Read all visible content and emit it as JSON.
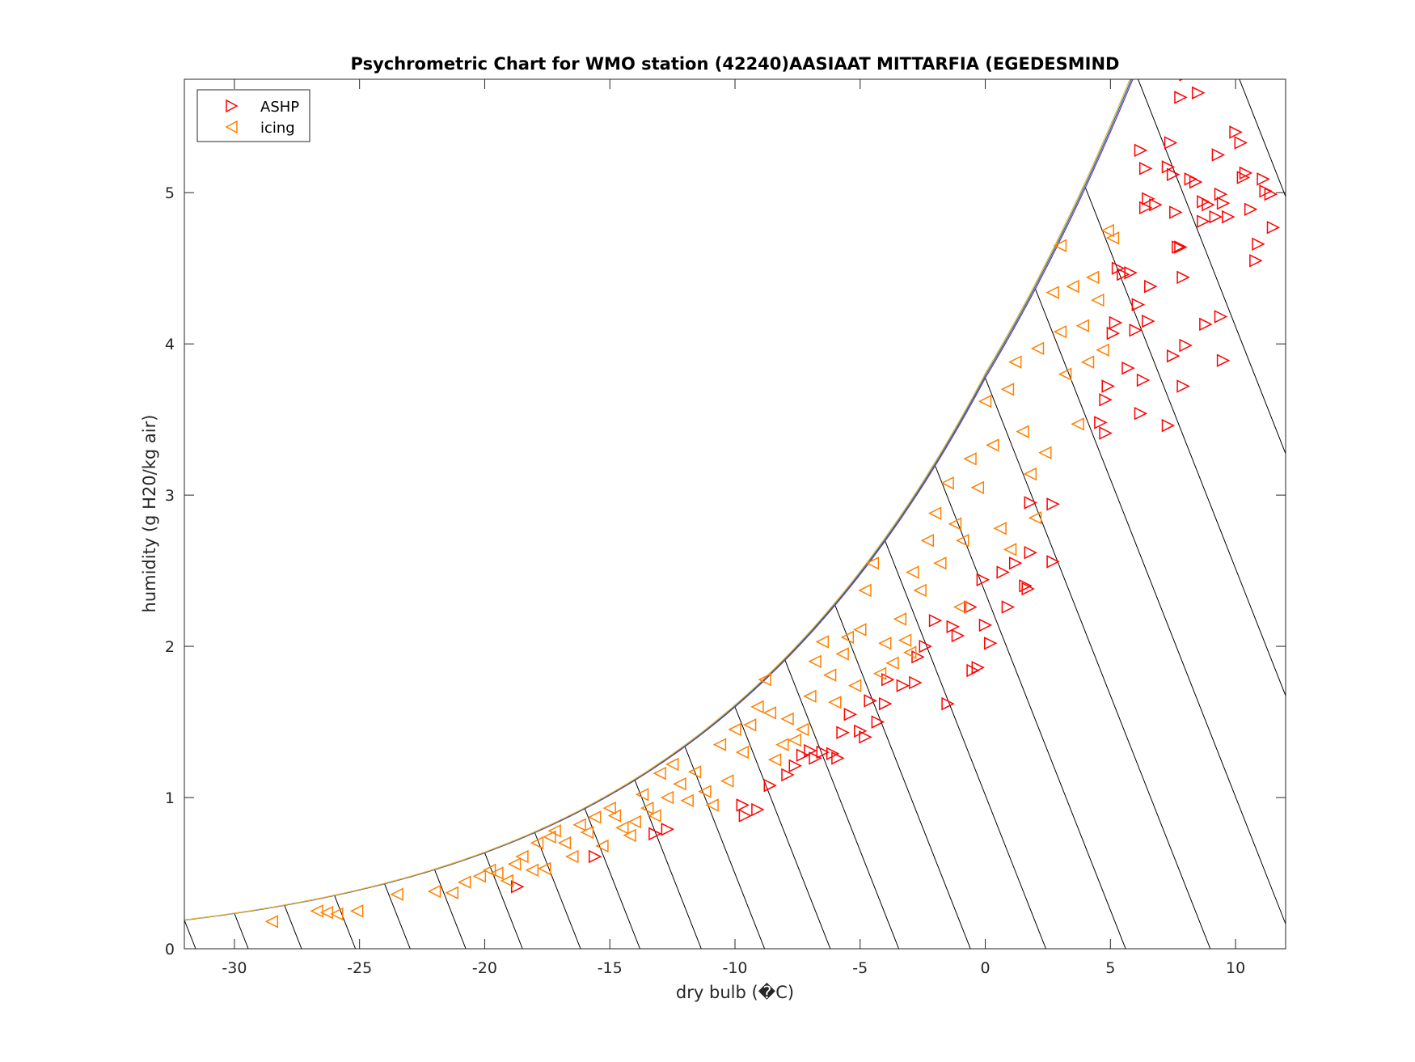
{
  "chart_data": {
    "type": "scatter",
    "title": "Psychrometric Chart for WMO station (42240)AASIAAT MITTARFIA (EGEDESMIND",
    "xlabel": "dry bulb (�C)",
    "ylabel": "humidity (g H20/kg air)",
    "xlim": [
      -32,
      12
    ],
    "ylim": [
      0,
      5.75
    ],
    "xticks": [
      -30,
      -25,
      -20,
      -15,
      -10,
      -5,
      0,
      5,
      10
    ],
    "yticks": [
      0,
      1,
      2,
      3,
      4,
      5
    ],
    "grid": false,
    "legend_position": "top-left",
    "background_lines": "saturation curve with diagonal constant wet-bulb lines",
    "colors": {
      "ASHP": "#ff0000",
      "icing": "#ff8000",
      "lines": "#000000",
      "saturation": "#7e2f8e"
    },
    "series": [
      {
        "name": "ASHP",
        "marker": "triangle-right",
        "points": [
          [
            -18.7,
            0.41
          ],
          [
            -15.6,
            0.61
          ],
          [
            -12.7,
            0.79
          ],
          [
            -13.2,
            0.76
          ],
          [
            -9.7,
            0.95
          ],
          [
            -9.6,
            0.88
          ],
          [
            -9.1,
            0.92
          ],
          [
            -8.6,
            1.08
          ],
          [
            -7.9,
            1.15
          ],
          [
            -7.6,
            1.21
          ],
          [
            -7.3,
            1.28
          ],
          [
            -7.0,
            1.31
          ],
          [
            -6.8,
            1.26
          ],
          [
            -6.5,
            1.3
          ],
          [
            -6.1,
            1.29
          ],
          [
            -5.9,
            1.26
          ],
          [
            -5.7,
            1.43
          ],
          [
            -5.4,
            1.55
          ],
          [
            -5.0,
            1.44
          ],
          [
            -4.8,
            1.4
          ],
          [
            -4.6,
            1.64
          ],
          [
            -4.3,
            1.5
          ],
          [
            -4.0,
            1.62
          ],
          [
            -3.9,
            1.78
          ],
          [
            -3.3,
            1.74
          ],
          [
            -2.8,
            1.76
          ],
          [
            -2.7,
            1.93
          ],
          [
            -2.4,
            2.0
          ],
          [
            -2.0,
            2.17
          ],
          [
            -1.5,
            1.62
          ],
          [
            -1.3,
            2.13
          ],
          [
            -1.1,
            2.07
          ],
          [
            -0.6,
            2.26
          ],
          [
            -0.5,
            1.84
          ],
          [
            -0.3,
            1.86
          ],
          [
            0.0,
            2.14
          ],
          [
            0.2,
            2.02
          ],
          [
            -0.1,
            2.44
          ],
          [
            0.7,
            2.49
          ],
          [
            0.9,
            2.26
          ],
          [
            1.2,
            2.55
          ],
          [
            1.6,
            2.4
          ],
          [
            1.7,
            2.38
          ],
          [
            1.8,
            2.62
          ],
          [
            1.8,
            2.95
          ],
          [
            2.7,
            2.94
          ],
          [
            2.7,
            2.56
          ],
          [
            4.6,
            3.48
          ],
          [
            4.8,
            3.41
          ],
          [
            4.8,
            3.63
          ],
          [
            4.9,
            3.72
          ],
          [
            5.1,
            4.07
          ],
          [
            5.2,
            4.14
          ],
          [
            5.3,
            4.5
          ],
          [
            5.5,
            4.46
          ],
          [
            5.7,
            3.84
          ],
          [
            5.8,
            4.47
          ],
          [
            6.0,
            4.09
          ],
          [
            6.1,
            4.26
          ],
          [
            6.2,
            3.54
          ],
          [
            6.3,
            3.76
          ],
          [
            6.4,
            4.9
          ],
          [
            6.5,
            4.15
          ],
          [
            6.6,
            4.38
          ],
          [
            6.2,
            5.28
          ],
          [
            6.4,
            5.16
          ],
          [
            6.5,
            4.96
          ],
          [
            6.8,
            4.92
          ],
          [
            7.3,
            5.17
          ],
          [
            7.4,
            5.33
          ],
          [
            7.5,
            5.12
          ],
          [
            7.6,
            4.87
          ],
          [
            7.7,
            4.64
          ],
          [
            7.8,
            4.64
          ],
          [
            7.9,
            4.44
          ],
          [
            7.8,
            5.63
          ],
          [
            8.0,
            5.78
          ],
          [
            8.2,
            5.09
          ],
          [
            8.4,
            5.07
          ],
          [
            8.7,
            4.94
          ],
          [
            8.5,
            5.66
          ],
          [
            8.7,
            4.81
          ],
          [
            8.9,
            4.92
          ],
          [
            9.2,
            4.84
          ],
          [
            9.3,
            5.25
          ],
          [
            9.4,
            4.99
          ],
          [
            9.5,
            4.93
          ],
          [
            9.7,
            4.84
          ],
          [
            10.0,
            5.4
          ],
          [
            10.2,
            5.33
          ],
          [
            10.3,
            5.1
          ],
          [
            10.4,
            5.13
          ],
          [
            10.6,
            4.89
          ],
          [
            10.8,
            4.55
          ],
          [
            10.9,
            4.66
          ],
          [
            11.1,
            5.09
          ],
          [
            11.2,
            5.01
          ],
          [
            11.4,
            4.99
          ],
          [
            11.5,
            4.77
          ],
          [
            8.8,
            4.13
          ],
          [
            9.4,
            4.18
          ],
          [
            9.5,
            3.89
          ],
          [
            7.9,
            3.72
          ],
          [
            7.3,
            3.46
          ],
          [
            7.5,
            3.92
          ],
          [
            8.0,
            3.99
          ]
        ]
      },
      {
        "name": "icing",
        "marker": "triangle-left",
        "points": [
          [
            -28.5,
            0.18
          ],
          [
            -26.7,
            0.25
          ],
          [
            -26.3,
            0.24
          ],
          [
            -25.9,
            0.23
          ],
          [
            -25.1,
            0.25
          ],
          [
            -23.5,
            0.36
          ],
          [
            -22.0,
            0.38
          ],
          [
            -21.3,
            0.37
          ],
          [
            -20.8,
            0.44
          ],
          [
            -20.2,
            0.48
          ],
          [
            -19.8,
            0.52
          ],
          [
            -19.5,
            0.5
          ],
          [
            -19.1,
            0.45
          ],
          [
            -18.8,
            0.56
          ],
          [
            -18.5,
            0.61
          ],
          [
            -18.1,
            0.52
          ],
          [
            -17.9,
            0.7
          ],
          [
            -17.6,
            0.53
          ],
          [
            -17.4,
            0.74
          ],
          [
            -17.2,
            0.78
          ],
          [
            -16.8,
            0.7
          ],
          [
            -16.5,
            0.61
          ],
          [
            -16.2,
            0.82
          ],
          [
            -15.9,
            0.77
          ],
          [
            -15.6,
            0.87
          ],
          [
            -15.3,
            0.68
          ],
          [
            -15.0,
            0.93
          ],
          [
            -14.8,
            0.88
          ],
          [
            -14.5,
            0.8
          ],
          [
            -14.2,
            0.75
          ],
          [
            -14.0,
            0.84
          ],
          [
            -13.7,
            1.02
          ],
          [
            -13.5,
            0.93
          ],
          [
            -13.2,
            0.88
          ],
          [
            -13.0,
            1.16
          ],
          [
            -12.7,
            1.0
          ],
          [
            -12.5,
            1.22
          ],
          [
            -12.2,
            1.09
          ],
          [
            -11.9,
            0.98
          ],
          [
            -11.6,
            1.17
          ],
          [
            -11.2,
            1.04
          ],
          [
            -10.9,
            0.95
          ],
          [
            -10.6,
            1.35
          ],
          [
            -10.3,
            1.11
          ],
          [
            -10.0,
            1.45
          ],
          [
            -9.7,
            1.3
          ],
          [
            -9.4,
            1.48
          ],
          [
            -9.1,
            1.6
          ],
          [
            -8.8,
            1.78
          ],
          [
            -8.6,
            1.56
          ],
          [
            -8.4,
            1.25
          ],
          [
            -8.1,
            1.35
          ],
          [
            -7.9,
            1.52
          ],
          [
            -7.6,
            1.38
          ],
          [
            -7.3,
            1.45
          ],
          [
            -7.0,
            1.67
          ],
          [
            -6.8,
            1.9
          ],
          [
            -6.5,
            2.03
          ],
          [
            -6.2,
            1.81
          ],
          [
            -6.0,
            1.63
          ],
          [
            -5.7,
            1.95
          ],
          [
            -5.5,
            2.06
          ],
          [
            -5.2,
            1.74
          ],
          [
            -5.0,
            2.11
          ],
          [
            -4.8,
            2.37
          ],
          [
            -4.5,
            2.55
          ],
          [
            -4.2,
            1.82
          ],
          [
            -4.0,
            2.02
          ],
          [
            -3.7,
            1.89
          ],
          [
            -3.4,
            2.18
          ],
          [
            -3.2,
            2.04
          ],
          [
            -2.9,
            2.49
          ],
          [
            -2.6,
            2.37
          ],
          [
            -2.3,
            2.7
          ],
          [
            -2.0,
            2.88
          ],
          [
            -1.8,
            2.55
          ],
          [
            -1.5,
            3.08
          ],
          [
            -1.2,
            2.81
          ],
          [
            -0.9,
            2.7
          ],
          [
            -0.6,
            3.24
          ],
          [
            -0.3,
            3.05
          ],
          [
            0.0,
            3.62
          ],
          [
            0.3,
            3.33
          ],
          [
            0.6,
            2.78
          ],
          [
            0.9,
            3.7
          ],
          [
            1.2,
            3.88
          ],
          [
            1.5,
            3.42
          ],
          [
            1.8,
            3.14
          ],
          [
            2.1,
            3.97
          ],
          [
            2.4,
            3.28
          ],
          [
            2.7,
            4.34
          ],
          [
            3.0,
            4.08
          ],
          [
            3.2,
            3.8
          ],
          [
            3.5,
            4.38
          ],
          [
            3.7,
            3.47
          ],
          [
            3.9,
            4.12
          ],
          [
            4.1,
            3.88
          ],
          [
            4.3,
            4.44
          ],
          [
            4.5,
            4.29
          ],
          [
            4.7,
            3.96
          ],
          [
            4.9,
            4.75
          ],
          [
            5.1,
            4.7
          ],
          [
            3.0,
            4.65
          ],
          [
            2.0,
            2.85
          ],
          [
            1.0,
            2.64
          ],
          [
            -1.0,
            2.26
          ],
          [
            -3.0,
            1.96
          ]
        ]
      }
    ]
  }
}
